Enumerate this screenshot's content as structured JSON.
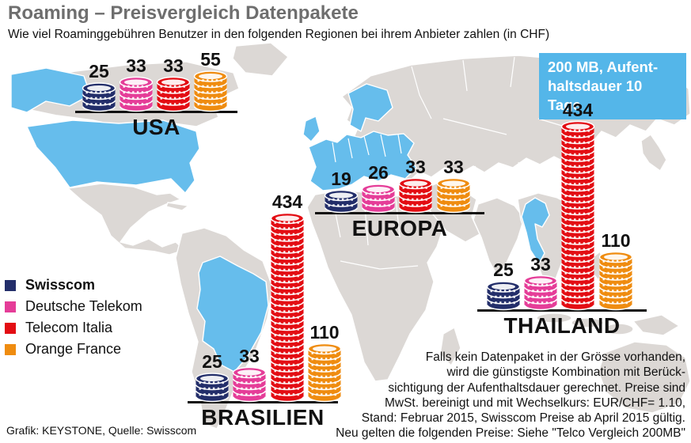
{
  "header": {
    "title": "Roaming – Preisvergleich Datenpakete",
    "subtitle": "Wie viel Roaminggebühren Benutzer in den folgenden Regionen bei ihrem Anbieter zahlen (in CHF)"
  },
  "info_box": {
    "lines": [
      "200 MB, Aufent-",
      "haltsdauer 10 Tage"
    ],
    "bg_color": "#54b6e9"
  },
  "legend": {
    "items": [
      {
        "label": "Swisscom",
        "color": "#232e6a"
      },
      {
        "label": "Deutsche Telekom",
        "color": "#e53d98"
      },
      {
        "label": "Telecom Italia",
        "color": "#e30d13"
      },
      {
        "label": "Orange France",
        "color": "#ef8c10"
      }
    ]
  },
  "chart_data": {
    "type": "pictorial_bar_coin_stacks",
    "title": "Roaming – Preisvergleich Datenpakete",
    "unit": "CHF",
    "package_note": "200 MB, Aufenthaltsdauer 10 Tage",
    "providers": [
      {
        "name": "Swisscom",
        "color": "#232e6a"
      },
      {
        "name": "Deutsche Telekom",
        "color": "#e53d98"
      },
      {
        "name": "Telecom Italia",
        "color": "#e30d13"
      },
      {
        "name": "Orange France",
        "color": "#ef8c10"
      }
    ],
    "regions": [
      {
        "name": "USA",
        "values": [
          25,
          33,
          33,
          55
        ]
      },
      {
        "name": "EUROPA",
        "values": [
          19,
          26,
          33,
          33
        ]
      },
      {
        "name": "BRASILIEN",
        "values": [
          25,
          33,
          434,
          110
        ]
      },
      {
        "name": "THAILAND",
        "values": [
          25,
          33,
          434,
          110
        ]
      }
    ],
    "map_land_color": "#dcd8d5",
    "map_highlight_color": "#66bdec"
  },
  "footnote": {
    "lines": [
      "Falls kein Datenpaket in der Grösse vorhanden,",
      "wird die günstigste Kombination mit Berück-",
      "sichtigung der Aufenthaltsdauer gerechnet. Preise sind",
      "MwSt. bereinigt und mit Wechselkurs: EUR/CHF= 1.10,",
      "Stand: Februar 2015, Swisscom Preise ab April 2015 gültig.",
      "Neu gelten die folgenden Preise: Siehe \"Telco Vergleich 200MB\""
    ]
  },
  "credit": "Grafik: KEYSTONE, Quelle: Swisscom"
}
